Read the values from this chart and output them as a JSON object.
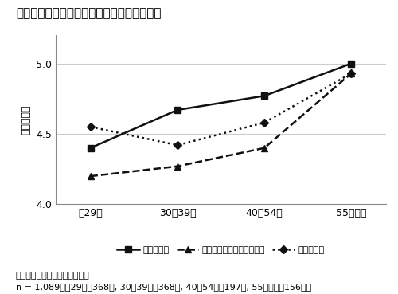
{
  "title": "図１　加齢に伴う仕事・学習関連の態度変化",
  "ylabel": "回答スコア",
  "x_labels": [
    "～29歳",
    "30～39歳",
    "40～54歳",
    "55歳以上"
  ],
  "series": {
    "仕事満足度": [
      4.4,
      4.67,
      4.77,
      5.0
    ],
    "仕事へのエンゲイジメント": [
      4.2,
      4.27,
      4.4,
      4.93
    ],
    "自律的学習": [
      4.55,
      4.42,
      4.58,
      4.93
    ]
  },
  "ylim": [
    4.0,
    5.2
  ],
  "yticks": [
    4.0,
    4.5,
    5.0
  ],
  "note_line1": "注：筆者のデータにより作成。",
  "note_line2": "n = 1,089（～29歳＝368名, 30～39歳＝368名, 40～54歳＝197名, 55歳以上＝156名）",
  "line_styles": {
    "仕事満足度": {
      "linestyle": "-",
      "marker": "s",
      "color": "#111111",
      "linewidth": 1.8,
      "markersize": 6
    },
    "仕事へのエンゲイジメント": {
      "linestyle": "--",
      "marker": "^",
      "color": "#111111",
      "linewidth": 1.8,
      "markersize": 6
    },
    "自律的学習": {
      "linestyle": ":",
      "marker": "D",
      "color": "#111111",
      "linewidth": 1.8,
      "markersize": 5
    }
  },
  "background_color": "#ffffff",
  "plot_bg_color": "#ffffff",
  "grid_color": "#cccccc",
  "font_size_title": 11,
  "font_size_axis": 9,
  "font_size_legend": 8,
  "font_size_note": 8,
  "font_size_ylabel": 9
}
